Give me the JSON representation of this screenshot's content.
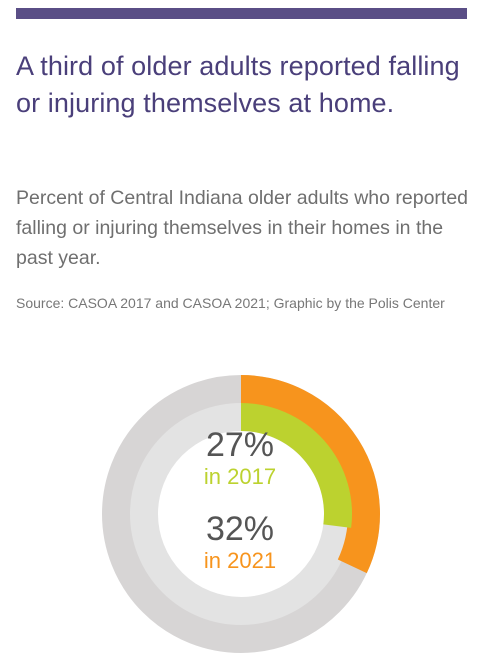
{
  "header": {
    "title": "A third of older adults reported falling or injuring themselves at home.",
    "subtitle": "Percent of Central Indiana older adults who reported falling or injuring themselves in their homes in the past year.",
    "source": "Source: CASOA 2017 and CASOA 2021; Graphic by the Polis Center"
  },
  "colors": {
    "accent_bar": "#5a4e86",
    "title": "#4a3f7a",
    "track_outer": "#d7d5d5",
    "track_inner": "#e3e3e3",
    "year_2017": "#bcd22f",
    "year_2021": "#f7941d"
  },
  "chart_data": {
    "type": "pie",
    "subtype": "concentric-donut",
    "title": "",
    "series": [
      {
        "name": "2021",
        "value": 32,
        "unit": "%",
        "ring": "outer",
        "color": "#f7941d"
      },
      {
        "name": "2017",
        "value": 27,
        "unit": "%",
        "ring": "inner",
        "color": "#bcd22f"
      }
    ],
    "labels": [
      {
        "value_text": "27%",
        "year_text": "in 2017"
      },
      {
        "value_text": "32%",
        "year_text": "in 2021"
      }
    ],
    "max": 100
  }
}
